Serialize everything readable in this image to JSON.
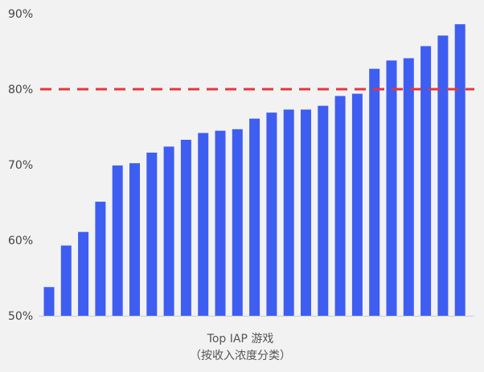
{
  "chart_data": {
    "type": "bar",
    "xlabel_lines": [
      "Top IAP 游戏",
      "（按收入浓度分类）"
    ],
    "ylabel": "",
    "ylim": [
      50,
      90
    ],
    "y_ticks": [
      50,
      60,
      70,
      80,
      90
    ],
    "y_tick_suffix": "%",
    "grid": false,
    "series": [
      {
        "values": [
          53.8,
          59.3,
          61.1,
          65.1,
          69.9,
          70.2,
          71.6,
          72.4,
          73.3,
          74.2,
          74.5,
          74.7,
          76.1,
          76.9,
          77.3,
          77.3,
          77.8,
          79.1,
          79.4,
          82.7,
          83.8,
          84.1,
          85.7,
          87.1,
          88.6
        ]
      }
    ],
    "reference_line": {
      "value": 80,
      "style": "dashed"
    },
    "colors": {
      "bar": "#3e5ef2",
      "reference_line": "#e8343c",
      "background": "#f2f2f2",
      "axis_line": "#cccccc"
    }
  }
}
